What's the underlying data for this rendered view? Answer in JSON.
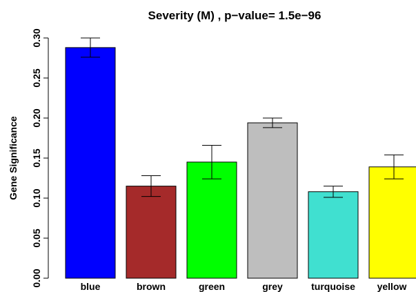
{
  "chart_data": {
    "type": "bar",
    "title": "Severity (M) , p−value= 1.5e−96",
    "y_label": "Gene Significance",
    "categories": [
      "blue",
      "brown",
      "green",
      "grey",
      "turquoise",
      "yellow"
    ],
    "values": [
      0.288,
      0.115,
      0.145,
      0.194,
      0.108,
      0.139
    ],
    "errors": [
      0.012,
      0.013,
      0.021,
      0.006,
      0.007,
      0.015
    ],
    "colors": [
      "#0000ff",
      "#a52a2a",
      "#00ff00",
      "#bebebe",
      "#40e0d0",
      "#ffff00"
    ],
    "ylim": [
      0,
      0.3
    ],
    "yticks": [
      {
        "value": 0,
        "label": "0.00"
      },
      {
        "value": 0.05,
        "label": "0.05"
      },
      {
        "value": 0.1,
        "label": "0.10"
      },
      {
        "value": 0.15,
        "label": "0.15"
      },
      {
        "value": 0.2,
        "label": "0.20"
      },
      {
        "value": 0.25,
        "label": "0.25"
      },
      {
        "value": 0.3,
        "label": "0.30"
      }
    ]
  }
}
